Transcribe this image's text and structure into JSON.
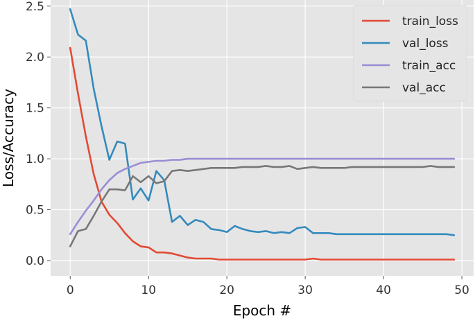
{
  "chart_data": {
    "type": "line",
    "xlabel": "Epoch #",
    "ylabel": "Loss/Accuracy",
    "xlim": [
      -2.5,
      51.5
    ],
    "ylim": [
      -0.15,
      2.56
    ],
    "x_ticks": [
      0,
      10,
      20,
      30,
      40,
      50
    ],
    "y_ticks": [
      0.0,
      0.5,
      1.0,
      1.5,
      2.0,
      2.5
    ],
    "x_tick_labels": [
      "0",
      "10",
      "20",
      "30",
      "40",
      "50"
    ],
    "y_tick_labels": [
      "0.0",
      "0.5",
      "1.0",
      "1.5",
      "2.0",
      "2.5"
    ],
    "grid": true,
    "legend_position": "top-right",
    "x": [
      0,
      1,
      2,
      3,
      4,
      5,
      6,
      7,
      8,
      9,
      10,
      11,
      12,
      13,
      14,
      15,
      16,
      17,
      18,
      19,
      20,
      21,
      22,
      23,
      24,
      25,
      26,
      27,
      28,
      29,
      30,
      31,
      32,
      33,
      34,
      35,
      36,
      37,
      38,
      39,
      40,
      41,
      42,
      43,
      44,
      45,
      46,
      47,
      48,
      49
    ],
    "series": [
      {
        "name": "train_loss",
        "color": "#E24A33",
        "values": [
          2.09,
          1.64,
          1.22,
          0.85,
          0.58,
          0.45,
          0.37,
          0.27,
          0.19,
          0.14,
          0.13,
          0.08,
          0.08,
          0.07,
          0.05,
          0.03,
          0.02,
          0.02,
          0.02,
          0.01,
          0.01,
          0.01,
          0.01,
          0.01,
          0.01,
          0.01,
          0.01,
          0.01,
          0.01,
          0.01,
          0.01,
          0.02,
          0.01,
          0.01,
          0.01,
          0.01,
          0.01,
          0.01,
          0.01,
          0.01,
          0.01,
          0.01,
          0.01,
          0.01,
          0.01,
          0.01,
          0.01,
          0.01,
          0.01,
          0.01
        ]
      },
      {
        "name": "val_loss",
        "color": "#348ABD",
        "values": [
          2.47,
          2.22,
          2.16,
          1.69,
          1.32,
          0.99,
          1.17,
          1.15,
          0.6,
          0.71,
          0.59,
          0.88,
          0.79,
          0.38,
          0.44,
          0.35,
          0.4,
          0.38,
          0.31,
          0.3,
          0.28,
          0.34,
          0.31,
          0.29,
          0.28,
          0.29,
          0.27,
          0.28,
          0.27,
          0.32,
          0.33,
          0.27,
          0.27,
          0.27,
          0.26,
          0.26,
          0.26,
          0.26,
          0.26,
          0.26,
          0.26,
          0.26,
          0.26,
          0.26,
          0.26,
          0.26,
          0.26,
          0.26,
          0.26,
          0.25
        ]
      },
      {
        "name": "train_acc",
        "color": "#988ED5",
        "values": [
          0.26,
          0.38,
          0.49,
          0.59,
          0.7,
          0.79,
          0.86,
          0.9,
          0.93,
          0.96,
          0.97,
          0.98,
          0.98,
          0.99,
          0.99,
          1.0,
          1.0,
          1.0,
          1.0,
          1.0,
          1.0,
          1.0,
          1.0,
          1.0,
          1.0,
          1.0,
          1.0,
          1.0,
          1.0,
          1.0,
          1.0,
          1.0,
          1.0,
          1.0,
          1.0,
          1.0,
          1.0,
          1.0,
          1.0,
          1.0,
          1.0,
          1.0,
          1.0,
          1.0,
          1.0,
          1.0,
          1.0,
          1.0,
          1.0,
          1.0
        ]
      },
      {
        "name": "val_acc",
        "color": "#777777",
        "values": [
          0.14,
          0.29,
          0.31,
          0.44,
          0.58,
          0.7,
          0.7,
          0.69,
          0.83,
          0.77,
          0.83,
          0.76,
          0.78,
          0.88,
          0.89,
          0.88,
          0.89,
          0.9,
          0.91,
          0.91,
          0.91,
          0.91,
          0.92,
          0.92,
          0.92,
          0.93,
          0.92,
          0.92,
          0.93,
          0.9,
          0.91,
          0.92,
          0.91,
          0.91,
          0.91,
          0.91,
          0.92,
          0.92,
          0.92,
          0.92,
          0.92,
          0.92,
          0.92,
          0.92,
          0.92,
          0.92,
          0.93,
          0.92,
          0.92,
          0.92
        ]
      }
    ]
  }
}
